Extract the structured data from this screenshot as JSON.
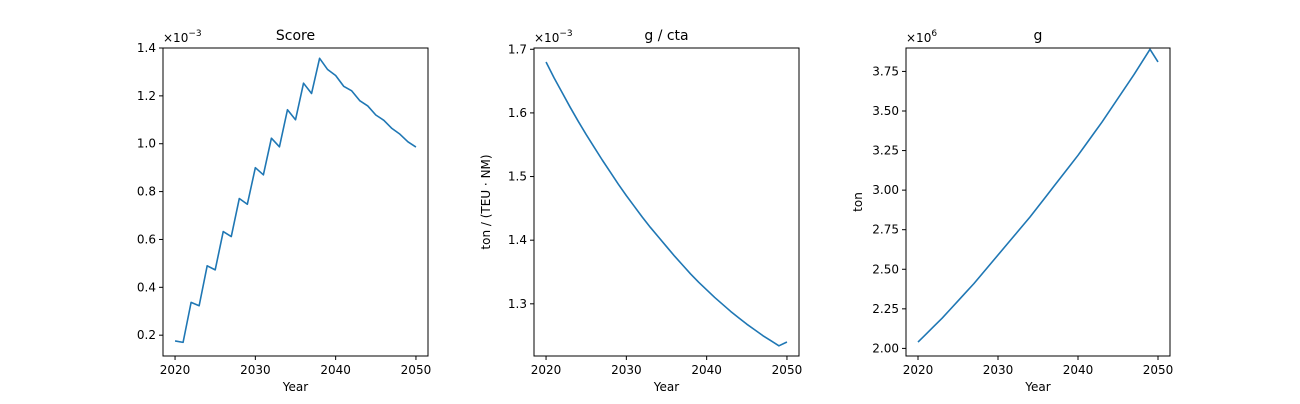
{
  "colors": {
    "line": "#1f77b4",
    "axis": "#000000",
    "background": "#ffffff"
  },
  "chart_data": [
    {
      "type": "line",
      "title": "Score",
      "xlabel": "Year",
      "ylabel": "",
      "multiplier": "×10",
      "multiplier_exp": "−3",
      "xlim": [
        2018.5,
        2051.5
      ],
      "ylim": [
        0.113,
        1.4
      ],
      "xticks": [
        2020,
        2030,
        2040,
        2050
      ],
      "xtick_labels": [
        "2020",
        "2030",
        "2040",
        "2050"
      ],
      "yticks": [
        0.2,
        0.4,
        0.6,
        0.8,
        1.0,
        1.2,
        1.4
      ],
      "ytick_labels": [
        "0.2",
        "0.4",
        "0.6",
        "0.8",
        "1.0",
        "1.2",
        "1.4"
      ],
      "grid": false,
      "x": [
        2020,
        2021,
        2022,
        2023,
        2024,
        2025,
        2026,
        2027,
        2028,
        2029,
        2030,
        2031,
        2032,
        2033,
        2034,
        2035,
        2036,
        2037,
        2038,
        2039,
        2040,
        2041,
        2042,
        2043,
        2044,
        2045,
        2046,
        2047,
        2048,
        2049,
        2050
      ],
      "series": [
        {
          "values": [
            0.176,
            0.17,
            0.337,
            0.323,
            0.49,
            0.473,
            0.633,
            0.612,
            0.771,
            0.747,
            0.9,
            0.87,
            1.023,
            0.987,
            1.142,
            1.1,
            1.253,
            1.21,
            1.357,
            1.31,
            1.285,
            1.24,
            1.221,
            1.18,
            1.158,
            1.12,
            1.098,
            1.064,
            1.04,
            1.008,
            0.986
          ]
        }
      ]
    },
    {
      "type": "line",
      "title": "g / cta",
      "xlabel": "Year",
      "ylabel": "ton / (TEU · NM)",
      "multiplier": "×10",
      "multiplier_exp": "−3",
      "xlim": [
        2018.5,
        2051.5
      ],
      "ylim": [
        1.218,
        1.702
      ],
      "xticks": [
        2020,
        2030,
        2040,
        2050
      ],
      "xtick_labels": [
        "2020",
        "2030",
        "2040",
        "2050"
      ],
      "yticks": [
        1.3,
        1.4,
        1.5,
        1.6,
        1.7
      ],
      "ytick_labels": [
        "1.3",
        "1.4",
        "1.5",
        "1.6",
        "1.7"
      ],
      "grid": false,
      "x": [
        2020,
        2021,
        2022,
        2023,
        2024,
        2025,
        2026,
        2027,
        2028,
        2029,
        2030,
        2031,
        2032,
        2033,
        2034,
        2035,
        2036,
        2037,
        2038,
        2039,
        2040,
        2041,
        2042,
        2043,
        2044,
        2045,
        2046,
        2047,
        2048,
        2049,
        2050
      ],
      "series": [
        {
          "values": [
            1.68,
            1.655,
            1.632,
            1.609,
            1.587,
            1.566,
            1.546,
            1.526,
            1.507,
            1.488,
            1.47,
            1.453,
            1.436,
            1.42,
            1.405,
            1.39,
            1.375,
            1.361,
            1.347,
            1.334,
            1.322,
            1.31,
            1.299,
            1.288,
            1.278,
            1.268,
            1.259,
            1.25,
            1.242,
            1.234,
            1.24
          ]
        }
      ]
    },
    {
      "type": "line",
      "title": "g",
      "xlabel": "Year",
      "ylabel": "ton",
      "multiplier": "×10",
      "multiplier_exp": "6",
      "xlim": [
        2018.5,
        2051.5
      ],
      "ylim": [
        1.952,
        3.898
      ],
      "xticks": [
        2020,
        2030,
        2040,
        2050
      ],
      "xtick_labels": [
        "2020",
        "2030",
        "2040",
        "2050"
      ],
      "yticks": [
        2.0,
        2.25,
        2.5,
        2.75,
        3.0,
        3.25,
        3.5,
        3.75
      ],
      "ytick_labels": [
        "2.00",
        "2.25",
        "2.50",
        "2.75",
        "3.00",
        "3.25",
        "3.50",
        "3.75"
      ],
      "grid": false,
      "x": [
        2020,
        2021,
        2022,
        2023,
        2024,
        2025,
        2026,
        2027,
        2028,
        2029,
        2030,
        2031,
        2032,
        2033,
        2034,
        2035,
        2036,
        2037,
        2038,
        2039,
        2040,
        2041,
        2042,
        2043,
        2044,
        2045,
        2046,
        2047,
        2048,
        2049,
        2050
      ],
      "series": [
        {
          "values": [
            2.04,
            2.09,
            2.14,
            2.19,
            2.245,
            2.3,
            2.355,
            2.41,
            2.47,
            2.53,
            2.59,
            2.65,
            2.71,
            2.77,
            2.83,
            2.895,
            2.96,
            3.025,
            3.09,
            3.155,
            3.22,
            3.29,
            3.36,
            3.43,
            3.505,
            3.58,
            3.655,
            3.73,
            3.81,
            3.89,
            3.81
          ]
        }
      ]
    }
  ]
}
